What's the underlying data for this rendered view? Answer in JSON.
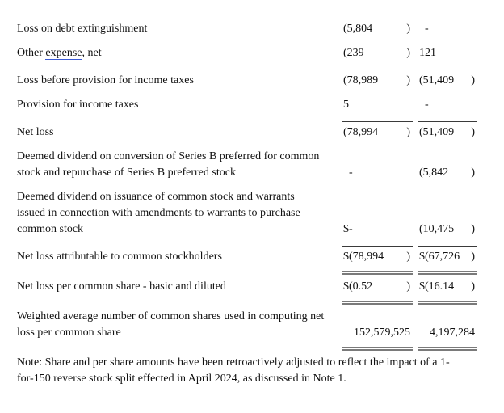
{
  "document": {
    "table": {
      "rows": [
        {
          "id": "loss-on-debt-extinguishment",
          "label_lines": [
            [
              {
                "t": "Loss on debt extinguishment"
              }
            ]
          ],
          "c1": {
            "d": "",
            "n": "(5,804",
            "p": ")"
          },
          "c2": {
            "d": "",
            "n": "-",
            "p": ""
          },
          "rule_top": false,
          "rule_bottom": false,
          "align": "left"
        },
        {
          "id": "other-expense-net",
          "label_lines": [
            [
              {
                "t": "Other "
              },
              {
                "t": "expense",
                "u": true
              },
              {
                "t": ", net"
              }
            ]
          ],
          "c1": {
            "d": "",
            "n": "(239",
            "p": ")"
          },
          "c2": {
            "d": "",
            "n": "121",
            "p": ""
          },
          "rule_top": false,
          "rule_bottom": false,
          "align": "left"
        },
        {
          "id": "loss-before-provision-for-income-taxes",
          "label_lines": [
            [
              {
                "t": "Loss before provision for income taxes"
              }
            ]
          ],
          "c1": {
            "d": "",
            "n": "(78,989",
            "p": ")"
          },
          "c2": {
            "d": "",
            "n": "(51,409",
            "p": ")"
          },
          "rule_top": true,
          "rule_bottom": false,
          "align": "left"
        },
        {
          "id": "provision-for-income-taxes",
          "label_lines": [
            [
              {
                "t": "Provision for income taxes"
              }
            ]
          ],
          "c1": {
            "d": "",
            "n": "5",
            "p": ""
          },
          "c2": {
            "d": "",
            "n": "-",
            "p": ""
          },
          "rule_top": false,
          "rule_bottom": false,
          "align": "left"
        },
        {
          "id": "net-loss",
          "label_lines": [
            [
              {
                "t": "Net loss"
              }
            ]
          ],
          "c1": {
            "d": "",
            "n": "(78,994",
            "p": ")"
          },
          "c2": {
            "d": "",
            "n": "(51,409",
            "p": ")"
          },
          "rule_top": true,
          "rule_bottom": false,
          "align": "left"
        },
        {
          "id": "deemed-dividend-conversion-series-b",
          "label_lines": [
            [
              {
                "t": "Deemed dividend on conversion of Series B preferred for common"
              }
            ],
            [
              {
                "t": "stock and repurchase of Series B preferred stock"
              }
            ]
          ],
          "c1": {
            "d": "",
            "n": "-",
            "p": ""
          },
          "c2": {
            "d": "",
            "n": "(5,842",
            "p": ")"
          },
          "rule_top": false,
          "rule_bottom": false,
          "align": "left"
        },
        {
          "id": "deemed-dividend-issuance-common-stock-warrants",
          "label_lines": [
            [
              {
                "t": "Deemed dividend on issuance of common stock and warrants"
              }
            ],
            [
              {
                "t": "issued in connection with amendments to warrants to purchase"
              }
            ],
            [
              {
                "t": "common stock"
              }
            ]
          ],
          "c1": {
            "d": "$",
            "n": "-",
            "p": ""
          },
          "c2": {
            "d": "",
            "n": "(10,475",
            "p": ")"
          },
          "rule_top": false,
          "rule_bottom": false,
          "align": "left"
        },
        {
          "id": "net-loss-attributable-to-common-stockholders",
          "label_lines": [
            [
              {
                "t": "Net loss attributable to common stockholders"
              }
            ]
          ],
          "c1": {
            "d": "$",
            "n": "(78,994",
            "p": ")"
          },
          "c2": {
            "d": "$",
            "n": "(67,726",
            "p": ")"
          },
          "rule_top": true,
          "rule_bottom": true,
          "align": "left"
        },
        {
          "id": "net-loss-per-common-share-basic-and-diluted",
          "label_lines": [
            [
              {
                "t": "Net loss per common share - basic and diluted"
              }
            ]
          ],
          "c1": {
            "d": "$",
            "n": "(0.52",
            "p": ")"
          },
          "c2": {
            "d": "$",
            "n": "(16.14",
            "p": ")"
          },
          "rule_top": false,
          "rule_bottom": true,
          "align": "left"
        },
        {
          "id": "weighted-average-number-of-common-shares",
          "label_lines": [
            [
              {
                "t": "Weighted average number of common shares used in computing net"
              }
            ],
            [
              {
                "t": "loss per common share"
              }
            ]
          ],
          "c1": {
            "d": "",
            "n": "152,579,525",
            "p": ""
          },
          "c2": {
            "d": "",
            "n": "4,197,284",
            "p": ""
          },
          "rule_top": false,
          "rule_bottom": true,
          "align": "right"
        }
      ],
      "note_lines": [
        "Note: Share and per share amounts have been retroactively adjusted to reflect the impact of a 1-",
        "for-150 reverse stock split effected in April 2024, as discussed in Note 1."
      ]
    },
    "colors": {
      "single_rule": "#3a3a3a",
      "double_rule": "#7a7a7a",
      "grammar_underline": "#3c5bd6",
      "text": "#121212"
    }
  }
}
